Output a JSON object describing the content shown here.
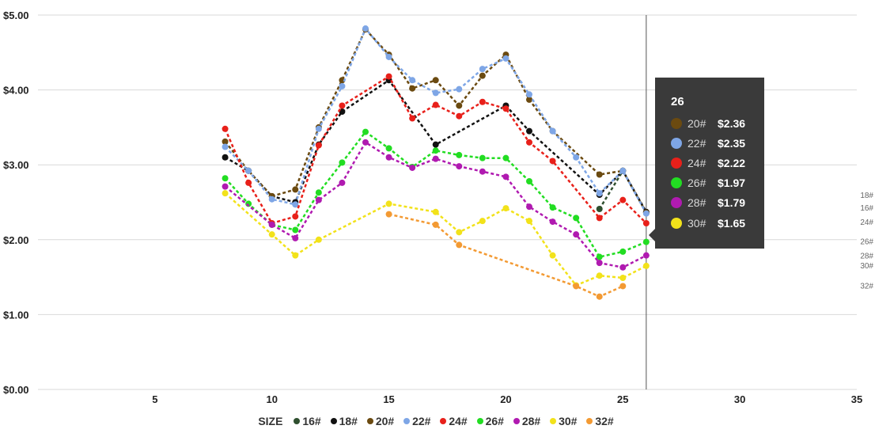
{
  "chart_data": {
    "type": "line",
    "title": "",
    "xlabel": "",
    "ylabel": "",
    "xlim": [
      0,
      35
    ],
    "ylim": [
      0,
      5
    ],
    "x_ticks": [
      5,
      10,
      15,
      20,
      25,
      30,
      35
    ],
    "y_ticks": [
      "$0.00",
      "$1.00",
      "$2.00",
      "$3.00",
      "$4.00",
      "$5.00"
    ],
    "y_tick_values": [
      0,
      1,
      2,
      3,
      4,
      5
    ],
    "grid": true,
    "line_style": "dotted",
    "legend": {
      "title": "SIZE",
      "position": "bottom"
    },
    "crosshair_x": 26,
    "series": [
      {
        "name": "16#",
        "color": "#2f4f2f",
        "points": [
          [
            24,
            2.41
          ],
          [
            25,
            2.92
          ],
          [
            26,
            2.36
          ]
        ]
      },
      {
        "name": "18#",
        "color": "#111111",
        "points": [
          [
            8,
            3.1
          ],
          [
            9,
            2.92
          ],
          [
            10,
            2.58
          ],
          [
            11,
            2.5
          ],
          [
            12,
            3.27
          ],
          [
            13,
            3.71
          ],
          [
            15,
            4.13
          ],
          [
            17,
            3.27
          ],
          [
            20,
            3.79
          ],
          [
            21,
            3.45
          ],
          [
            24,
            2.6
          ],
          [
            25,
            2.92
          ],
          [
            26,
            2.37
          ]
        ]
      },
      {
        "name": "20#",
        "color": "#6b4a10",
        "points": [
          [
            8,
            3.31
          ],
          [
            9,
            2.92
          ],
          [
            10,
            2.58
          ],
          [
            11,
            2.67
          ],
          [
            12,
            3.5
          ],
          [
            13,
            4.13
          ],
          [
            14,
            4.81
          ],
          [
            15,
            4.47
          ],
          [
            16,
            4.02
          ],
          [
            17,
            4.13
          ],
          [
            18,
            3.79
          ],
          [
            19,
            4.19
          ],
          [
            20,
            4.47
          ],
          [
            21,
            3.87
          ],
          [
            22,
            3.45
          ],
          [
            24,
            2.87
          ],
          [
            25,
            2.92
          ],
          [
            26,
            2.36
          ]
        ]
      },
      {
        "name": "22#",
        "color": "#7ea6e6",
        "points": [
          [
            8,
            3.24
          ],
          [
            9,
            2.92
          ],
          [
            10,
            2.54
          ],
          [
            11,
            2.47
          ],
          [
            12,
            3.48
          ],
          [
            13,
            4.05
          ],
          [
            14,
            4.82
          ],
          [
            15,
            4.44
          ],
          [
            16,
            4.13
          ],
          [
            17,
            3.96
          ],
          [
            18,
            4.01
          ],
          [
            19,
            4.28
          ],
          [
            20,
            4.42
          ],
          [
            21,
            3.94
          ],
          [
            22,
            3.45
          ],
          [
            23,
            3.1
          ],
          [
            24,
            2.62
          ],
          [
            25,
            2.92
          ],
          [
            26,
            2.35
          ]
        ]
      },
      {
        "name": "24#",
        "color": "#e8201a",
        "points": [
          [
            8,
            3.48
          ],
          [
            9,
            2.76
          ],
          [
            10,
            2.22
          ],
          [
            11,
            2.31
          ],
          [
            12,
            3.26
          ],
          [
            13,
            3.79
          ],
          [
            15,
            4.18
          ],
          [
            16,
            3.62
          ],
          [
            17,
            3.8
          ],
          [
            18,
            3.65
          ],
          [
            19,
            3.84
          ],
          [
            20,
            3.75
          ],
          [
            21,
            3.3
          ],
          [
            22,
            3.05
          ],
          [
            24,
            2.29
          ],
          [
            25,
            2.53
          ],
          [
            26,
            2.22
          ]
        ]
      },
      {
        "name": "26#",
        "color": "#22dd22",
        "points": [
          [
            8,
            2.82
          ],
          [
            9,
            2.48
          ],
          [
            10,
            2.2
          ],
          [
            11,
            2.13
          ],
          [
            12,
            2.63
          ],
          [
            13,
            3.03
          ],
          [
            14,
            3.44
          ],
          [
            15,
            3.22
          ],
          [
            16,
            2.97
          ],
          [
            17,
            3.19
          ],
          [
            18,
            3.13
          ],
          [
            19,
            3.09
          ],
          [
            20,
            3.09
          ],
          [
            21,
            2.78
          ],
          [
            22,
            2.43
          ],
          [
            23,
            2.29
          ],
          [
            24,
            1.77
          ],
          [
            25,
            1.84
          ],
          [
            26,
            1.97
          ]
        ]
      },
      {
        "name": "28#",
        "color": "#b01ab0",
        "points": [
          [
            8,
            2.71
          ],
          [
            10,
            2.2
          ],
          [
            11,
            2.02
          ],
          [
            12,
            2.53
          ],
          [
            13,
            2.76
          ],
          [
            14,
            3.3
          ],
          [
            15,
            3.1
          ],
          [
            16,
            2.96
          ],
          [
            17,
            3.08
          ],
          [
            18,
            2.98
          ],
          [
            19,
            2.91
          ],
          [
            20,
            2.84
          ],
          [
            21,
            2.44
          ],
          [
            22,
            2.24
          ],
          [
            23,
            2.07
          ],
          [
            24,
            1.69
          ],
          [
            25,
            1.63
          ],
          [
            26,
            1.79
          ]
        ]
      },
      {
        "name": "30#",
        "color": "#f2e21a",
        "points": [
          [
            8,
            2.62
          ],
          [
            10,
            2.07
          ],
          [
            11,
            1.79
          ],
          [
            12,
            2.0
          ],
          [
            15,
            2.48
          ],
          [
            17,
            2.37
          ],
          [
            18,
            2.1
          ],
          [
            19,
            2.25
          ],
          [
            20,
            2.42
          ],
          [
            21,
            2.25
          ],
          [
            22,
            1.79
          ],
          [
            23,
            1.39
          ],
          [
            24,
            1.52
          ],
          [
            25,
            1.49
          ],
          [
            26,
            1.65
          ]
        ]
      },
      {
        "name": "32#",
        "color": "#f39a33",
        "points": [
          [
            15,
            2.34
          ],
          [
            17,
            2.2
          ],
          [
            18,
            1.93
          ],
          [
            23,
            1.38
          ],
          [
            24,
            1.24
          ],
          [
            25,
            1.38
          ]
        ]
      }
    ],
    "end_labels": [
      {
        "name": "18#",
        "y": 2.6
      },
      {
        "name": "16#",
        "y": 2.43
      },
      {
        "name": "24#",
        "y": 2.24
      },
      {
        "name": "26#",
        "y": 1.98
      },
      {
        "name": "28#",
        "y": 1.79
      },
      {
        "name": "30#",
        "y": 1.66
      },
      {
        "name": "32#",
        "y": 1.39
      }
    ]
  },
  "tooltip": {
    "title": "26",
    "rows": [
      {
        "name": "20#",
        "value": "$2.36",
        "color": "#6b4a10"
      },
      {
        "name": "22#",
        "value": "$2.35",
        "color": "#7ea6e6"
      },
      {
        "name": "24#",
        "value": "$2.22",
        "color": "#e8201a"
      },
      {
        "name": "26#",
        "value": "$1.97",
        "color": "#22dd22"
      },
      {
        "name": "28#",
        "value": "$1.79",
        "color": "#b01ab0"
      },
      {
        "name": "30#",
        "value": "$1.65",
        "color": "#f2e21a"
      }
    ]
  }
}
